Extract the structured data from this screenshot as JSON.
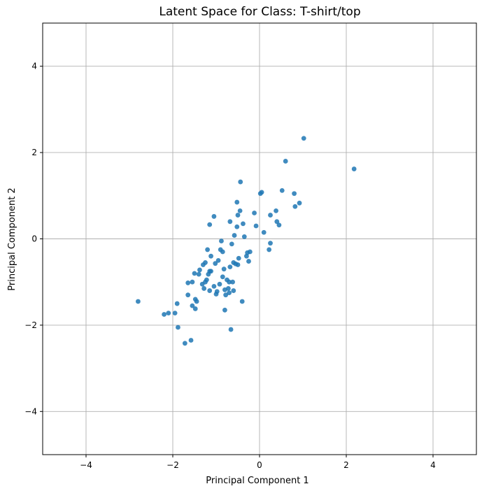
{
  "chart_data": {
    "type": "scatter",
    "title": "Latent Space for Class: T-shirt/top",
    "xlabel": "Principal Component 1",
    "ylabel": "Principal Component 2",
    "xlim": [
      -5,
      5
    ],
    "ylim": [
      -5,
      5
    ],
    "xticks": [
      -4,
      -2,
      0,
      2,
      4
    ],
    "yticks": [
      -4,
      -2,
      0,
      2,
      4
    ],
    "xtick_labels": [
      "−4",
      "−2",
      "0",
      "2",
      "4"
    ],
    "ytick_labels": [
      "−4",
      "−2",
      "0",
      "2",
      "4"
    ],
    "grid": true,
    "marker_color": "#1f77b4",
    "points": [
      [
        -2.8,
        -1.45
      ],
      [
        -2.2,
        -1.75
      ],
      [
        -2.1,
        -1.72
      ],
      [
        -1.95,
        -1.72
      ],
      [
        -1.9,
        -1.5
      ],
      [
        -1.88,
        -2.05
      ],
      [
        -1.72,
        -2.42
      ],
      [
        -1.58,
        -2.35
      ],
      [
        -1.65,
        -1.3
      ],
      [
        -1.65,
        -1.02
      ],
      [
        -1.55,
        -1.0
      ],
      [
        -1.55,
        -1.55
      ],
      [
        -1.48,
        -1.4
      ],
      [
        -1.48,
        -1.62
      ],
      [
        -1.5,
        -0.8
      ],
      [
        -1.45,
        -1.45
      ],
      [
        -1.4,
        -0.82
      ],
      [
        -1.38,
        -0.72
      ],
      [
        -1.32,
        -1.05
      ],
      [
        -1.3,
        -0.6
      ],
      [
        -1.28,
        -1.15
      ],
      [
        -1.25,
        -0.55
      ],
      [
        -1.25,
        -1.0
      ],
      [
        -1.22,
        -0.95
      ],
      [
        -1.2,
        -0.25
      ],
      [
        -1.18,
        -0.82
      ],
      [
        -1.15,
        -0.75
      ],
      [
        -1.15,
        -1.2
      ],
      [
        -1.12,
        -0.4
      ],
      [
        -1.12,
        -0.75
      ],
      [
        -1.15,
        0.33
      ],
      [
        -1.05,
        0.52
      ],
      [
        -1.05,
        -1.1
      ],
      [
        -1.02,
        -0.57
      ],
      [
        -1.0,
        -1.28
      ],
      [
        -0.98,
        -1.22
      ],
      [
        -0.95,
        -0.5
      ],
      [
        -0.92,
        -1.05
      ],
      [
        -0.9,
        -0.25
      ],
      [
        -0.88,
        -0.05
      ],
      [
        -0.85,
        -0.3
      ],
      [
        -0.85,
        -0.88
      ],
      [
        -0.82,
        -0.7
      ],
      [
        -0.8,
        -1.18
      ],
      [
        -0.8,
        -1.65
      ],
      [
        -0.78,
        -1.3
      ],
      [
        -0.75,
        -0.95
      ],
      [
        -0.72,
        -1.15
      ],
      [
        -0.7,
        -1.0
      ],
      [
        -0.7,
        -1.25
      ],
      [
        -0.68,
        -0.65
      ],
      [
        -0.68,
        0.4
      ],
      [
        -0.66,
        -2.1
      ],
      [
        -0.64,
        -0.12
      ],
      [
        -0.62,
        -1.0
      ],
      [
        -0.6,
        -0.55
      ],
      [
        -0.6,
        -1.2
      ],
      [
        -0.58,
        0.08
      ],
      [
        -0.55,
        -0.58
      ],
      [
        -0.52,
        0.28
      ],
      [
        -0.52,
        0.85
      ],
      [
        -0.5,
        0.55
      ],
      [
        -0.5,
        -0.6
      ],
      [
        -0.48,
        -0.45
      ],
      [
        -0.45,
        0.65
      ],
      [
        -0.44,
        1.32
      ],
      [
        -0.4,
        -1.45
      ],
      [
        -0.38,
        0.35
      ],
      [
        -0.35,
        0.05
      ],
      [
        -0.3,
        -0.4
      ],
      [
        -0.28,
        -0.32
      ],
      [
        -0.25,
        -0.52
      ],
      [
        -0.22,
        -0.3
      ],
      [
        -0.12,
        0.6
      ],
      [
        -0.08,
        0.3
      ],
      [
        0.02,
        1.05
      ],
      [
        0.05,
        1.08
      ],
      [
        0.1,
        0.15
      ],
      [
        0.22,
        -0.25
      ],
      [
        0.25,
        -0.1
      ],
      [
        0.25,
        0.55
      ],
      [
        0.38,
        0.65
      ],
      [
        0.4,
        0.4
      ],
      [
        0.45,
        0.32
      ],
      [
        0.52,
        1.12
      ],
      [
        0.6,
        1.8
      ],
      [
        0.8,
        1.05
      ],
      [
        0.82,
        0.75
      ],
      [
        0.92,
        0.83
      ],
      [
        1.02,
        2.33
      ],
      [
        2.18,
        1.62
      ]
    ]
  }
}
